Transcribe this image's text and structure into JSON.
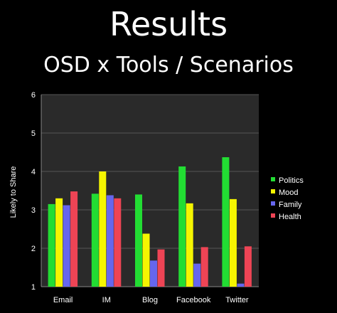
{
  "slide": {
    "title": "Results",
    "subtitle": "OSD x Tools / Scenarios"
  },
  "chart_data": {
    "type": "bar",
    "categories": [
      "Email",
      "IM",
      "Blog",
      "Facebook",
      "Twitter"
    ],
    "series": [
      {
        "name": "Politics",
        "color": "#22dd33",
        "values": [
          3.15,
          3.42,
          3.4,
          4.13,
          4.37
        ]
      },
      {
        "name": "Mood",
        "color": "#f5f500",
        "values": [
          3.3,
          4.0,
          2.38,
          3.17,
          3.28
        ]
      },
      {
        "name": "Family",
        "color": "#6666ee",
        "values": [
          3.12,
          3.38,
          1.68,
          1.6,
          1.08
        ]
      },
      {
        "name": "Health",
        "color": "#ee4455",
        "values": [
          3.48,
          3.3,
          1.97,
          2.03,
          2.05
        ]
      }
    ],
    "xlabel": "",
    "ylabel": "Likely to Share",
    "ylim": [
      1,
      6
    ],
    "yticks": [
      "1",
      "2",
      "3",
      "4",
      "5",
      "6"
    ],
    "grid": true,
    "legend_position": "right"
  }
}
